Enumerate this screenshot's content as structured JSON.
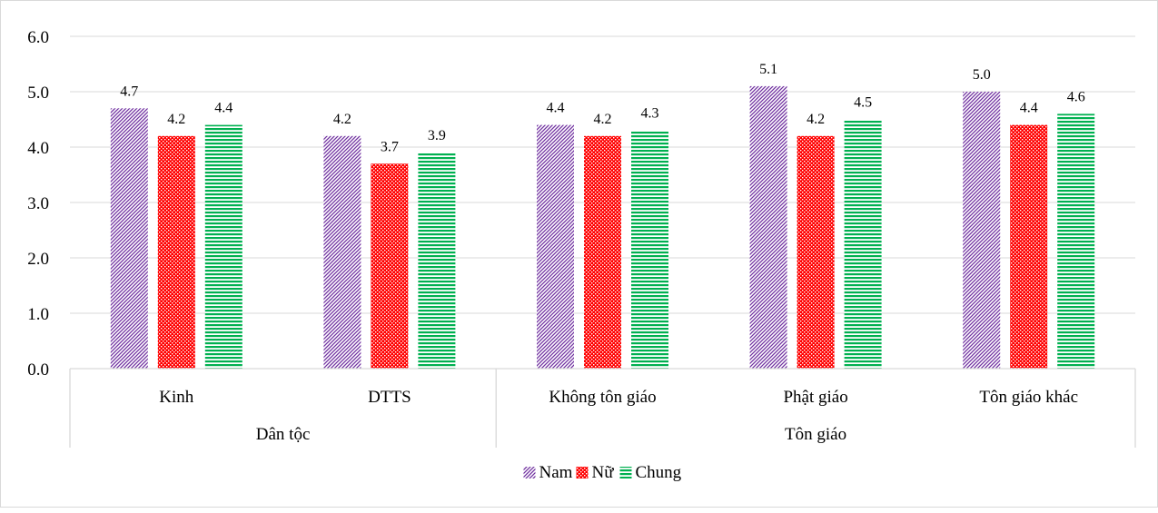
{
  "chart_data": {
    "type": "bar",
    "groups": [
      {
        "label": "Dân tộc",
        "categories": [
          "Kinh",
          "DTTS"
        ]
      },
      {
        "label": "Tôn giáo",
        "categories": [
          "Không tôn giáo",
          "Phật giáo",
          "Tôn giáo khác"
        ]
      }
    ],
    "categories": [
      "Kinh",
      "DTTS",
      "Không tôn giáo",
      "Phật giáo",
      "Tôn giáo khác"
    ],
    "series": [
      {
        "name": "Nam",
        "values": [
          4.7,
          4.2,
          4.4,
          5.1,
          5.0
        ],
        "color": "#7030a0",
        "pattern": "diagonal-stripes"
      },
      {
        "name": "Nữ",
        "values": [
          4.2,
          3.7,
          4.2,
          4.2,
          4.4
        ],
        "color": "#ff0000",
        "pattern": "checkerboard"
      },
      {
        "name": "Chung",
        "values": [
          4.4,
          3.9,
          4.3,
          4.5,
          4.6
        ],
        "color": "#00b050",
        "pattern": "horizontal-stripes"
      }
    ],
    "y_ticks": [
      "0.0",
      "1.0",
      "2.0",
      "3.0",
      "4.0",
      "5.0",
      "6.0"
    ],
    "ylim": [
      0,
      6
    ],
    "grid": true,
    "legend_position": "bottom",
    "data_labels": true
  }
}
